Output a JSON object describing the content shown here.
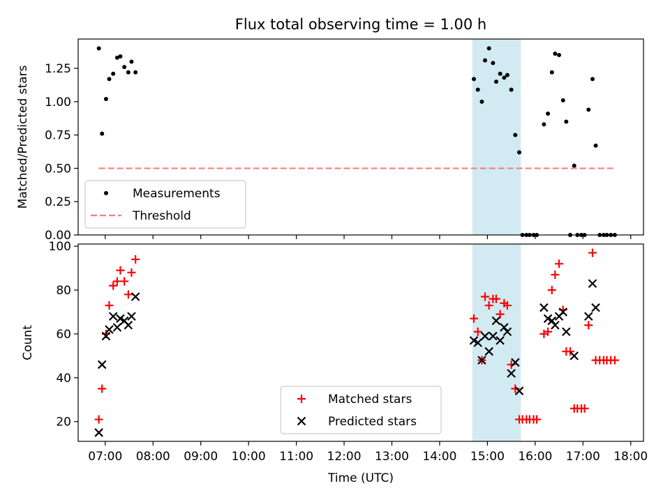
{
  "figure": {
    "title": "Flux total observing time = 1.00 h",
    "xlabel": "Time (UTC)"
  },
  "chart_data": [
    {
      "type": "scatter",
      "panel": "top",
      "xlabel": "Time (UTC)",
      "ylabel": "Matched/Predicted stars",
      "xlim": [
        "06:26",
        "18:16"
      ],
      "ylim": [
        0,
        1.47
      ],
      "x_ticks": [
        "07:00",
        "08:00",
        "09:00",
        "10:00",
        "11:00",
        "12:00",
        "13:00",
        "14:00",
        "15:00",
        "16:00",
        "17:00",
        "18:00"
      ],
      "y_ticks": [
        "0.00",
        "0.25",
        "0.50",
        "0.75",
        "1.00",
        "1.25"
      ],
      "highlight_band": {
        "x": [
          "14:41",
          "15:42"
        ],
        "color": "#add8e6"
      },
      "legend": {
        "position": "lower-left",
        "entries": [
          "Measurements",
          "Threshold"
        ]
      },
      "series": [
        {
          "name": "Measurements",
          "marker": "dot",
          "color": "#000000",
          "points": [
            [
              "06:52",
              1.4
            ],
            [
              "06:56",
              0.76
            ],
            [
              "07:01",
              1.02
            ],
            [
              "07:05",
              1.17
            ],
            [
              "07:10",
              1.21
            ],
            [
              "07:15",
              1.33
            ],
            [
              "07:19",
              1.34
            ],
            [
              "07:24",
              1.26
            ],
            [
              "07:29",
              1.22
            ],
            [
              "07:33",
              1.3
            ],
            [
              "07:38",
              1.22
            ],
            [
              "14:43",
              1.17
            ],
            [
              "14:48",
              1.09
            ],
            [
              "14:53",
              1.0
            ],
            [
              "14:57",
              1.31
            ],
            [
              "15:02",
              1.4
            ],
            [
              "15:07",
              1.29
            ],
            [
              "15:11",
              1.15
            ],
            [
              "15:16",
              1.21
            ],
            [
              "15:21",
              1.18
            ],
            [
              "15:25",
              1.2
            ],
            [
              "15:30",
              1.09
            ],
            [
              "15:35",
              0.75
            ],
            [
              "15:40",
              0.62
            ],
            [
              "15:44",
              0.0
            ],
            [
              "15:49",
              0.0
            ],
            [
              "15:53",
              0.0
            ],
            [
              "15:58",
              0.0
            ],
            [
              "16:02",
              0.0
            ],
            [
              "16:11",
              0.83
            ],
            [
              "16:16",
              0.91
            ],
            [
              "16:21",
              1.22
            ],
            [
              "16:25",
              1.36
            ],
            [
              "16:30",
              1.35
            ],
            [
              "16:35",
              1.01
            ],
            [
              "16:39",
              0.85
            ],
            [
              "16:44",
              0.0
            ],
            [
              "16:49",
              0.52
            ],
            [
              "16:53",
              0.0
            ],
            [
              "16:58",
              0.0
            ],
            [
              "17:02",
              0.0
            ],
            [
              "17:07",
              0.94
            ],
            [
              "17:12",
              1.17
            ],
            [
              "17:16",
              0.67
            ],
            [
              "17:21",
              0.0
            ],
            [
              "17:26",
              0.0
            ],
            [
              "17:30",
              0.0
            ],
            [
              "17:35",
              0.0
            ],
            [
              "17:40",
              0.0
            ]
          ]
        },
        {
          "name": "Threshold",
          "style": "dashed",
          "color": "#f08080",
          "points": [
            [
              "06:52",
              0.5
            ],
            [
              "17:40",
              0.5
            ]
          ]
        }
      ]
    },
    {
      "type": "scatter",
      "panel": "bottom",
      "xlabel": "Time (UTC)",
      "ylabel": "Count",
      "xlim": [
        "06:26",
        "18:16"
      ],
      "ylim": [
        11,
        101
      ],
      "x_ticks": [
        "07:00",
        "08:00",
        "09:00",
        "10:00",
        "11:00",
        "12:00",
        "13:00",
        "14:00",
        "15:00",
        "16:00",
        "17:00",
        "18:00"
      ],
      "y_ticks": [
        "20",
        "40",
        "60",
        "80",
        "100"
      ],
      "highlight_band": {
        "x": [
          "14:41",
          "15:42"
        ],
        "color": "#add8e6"
      },
      "legend": {
        "position": "lower-center",
        "entries": [
          "Matched stars",
          "Predicted stars"
        ]
      },
      "series": [
        {
          "name": "Matched stars",
          "marker": "plus",
          "color": "#ff0000",
          "points": [
            [
              "06:52",
              21
            ],
            [
              "06:56",
              35
            ],
            [
              "07:01",
              60
            ],
            [
              "07:05",
              73
            ],
            [
              "07:10",
              82
            ],
            [
              "07:15",
              84
            ],
            [
              "07:19",
              89
            ],
            [
              "07:24",
              84
            ],
            [
              "07:29",
              78
            ],
            [
              "07:33",
              88
            ],
            [
              "07:38",
              94
            ],
            [
              "14:43",
              67
            ],
            [
              "14:48",
              61
            ],
            [
              "14:53",
              48
            ],
            [
              "14:57",
              77
            ],
            [
              "15:02",
              73
            ],
            [
              "15:07",
              76
            ],
            [
              "15:11",
              76
            ],
            [
              "15:16",
              69
            ],
            [
              "15:21",
              74
            ],
            [
              "15:25",
              73
            ],
            [
              "15:30",
              46
            ],
            [
              "15:35",
              35
            ],
            [
              "15:40",
              21
            ],
            [
              "15:44",
              21
            ],
            [
              "15:49",
              21
            ],
            [
              "15:53",
              21
            ],
            [
              "15:58",
              21
            ],
            [
              "16:02",
              21
            ],
            [
              "16:11",
              60
            ],
            [
              "16:16",
              61
            ],
            [
              "16:21",
              80
            ],
            [
              "16:25",
              87
            ],
            [
              "16:30",
              92
            ],
            [
              "16:35",
              71
            ],
            [
              "16:39",
              52
            ],
            [
              "16:44",
              52
            ],
            [
              "16:49",
              26
            ],
            [
              "16:53",
              26
            ],
            [
              "16:58",
              26
            ],
            [
              "17:02",
              26
            ],
            [
              "17:07",
              64
            ],
            [
              "17:12",
              97
            ],
            [
              "17:16",
              48
            ],
            [
              "17:21",
              48
            ],
            [
              "17:26",
              48
            ],
            [
              "17:30",
              48
            ],
            [
              "17:35",
              48
            ],
            [
              "17:40",
              48
            ]
          ]
        },
        {
          "name": "Predicted stars",
          "marker": "x",
          "color": "#000000",
          "points": [
            [
              "06:52",
              15
            ],
            [
              "06:56",
              46
            ],
            [
              "07:01",
              59
            ],
            [
              "07:05",
              62
            ],
            [
              "07:10",
              68
            ],
            [
              "07:15",
              63
            ],
            [
              "07:19",
              67
            ],
            [
              "07:24",
              66
            ],
            [
              "07:29",
              64
            ],
            [
              "07:33",
              68
            ],
            [
              "07:38",
              77
            ],
            [
              "14:43",
              57
            ],
            [
              "14:48",
              56
            ],
            [
              "14:53",
              48
            ],
            [
              "14:57",
              59
            ],
            [
              "15:02",
              52
            ],
            [
              "15:07",
              59
            ],
            [
              "15:11",
              66
            ],
            [
              "15:16",
              57
            ],
            [
              "15:21",
              63
            ],
            [
              "15:25",
              61
            ],
            [
              "15:30",
              42
            ],
            [
              "15:35",
              47
            ],
            [
              "15:40",
              34
            ],
            [
              "16:11",
              72
            ],
            [
              "16:16",
              67
            ],
            [
              "16:21",
              66
            ],
            [
              "16:25",
              64
            ],
            [
              "16:30",
              68
            ],
            [
              "16:35",
              70
            ],
            [
              "16:39",
              61
            ],
            [
              "16:49",
              50
            ],
            [
              "17:07",
              68
            ],
            [
              "17:12",
              83
            ],
            [
              "17:16",
              72
            ]
          ]
        }
      ]
    }
  ]
}
